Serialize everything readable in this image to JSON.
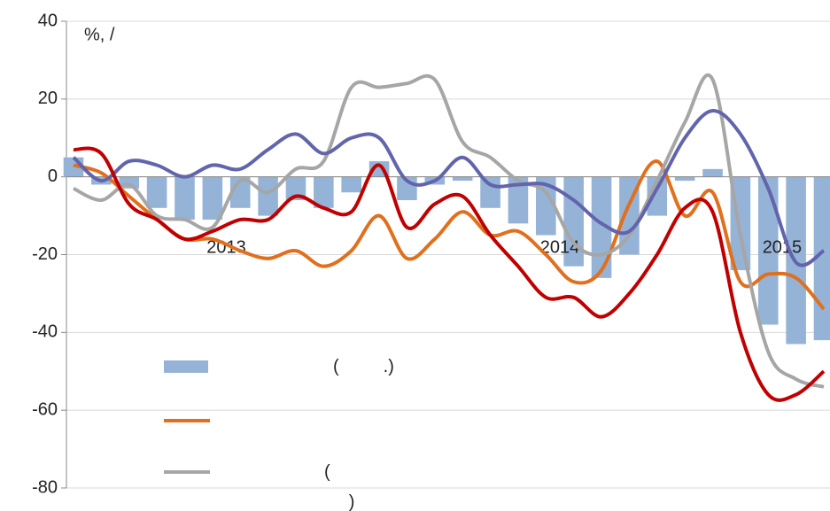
{
  "chart_data": {
    "type": "bar-line",
    "title": "%,  /",
    "categories": [
      null,
      null,
      null,
      null,
      null,
      "2013",
      null,
      null,
      null,
      null,
      null,
      null,
      null,
      null,
      null,
      null,
      null,
      "2014",
      null,
      null,
      null,
      null,
      null,
      null,
      null,
      "2015",
      null,
      null
    ],
    "ylim": [
      -80,
      40
    ],
    "yticks": [
      -80,
      -60,
      -40,
      -20,
      0,
      20,
      40
    ],
    "grid": true,
    "series": [
      {
        "name": "(         .)",
        "type": "bar",
        "color": "#95b3d7",
        "values": [
          5,
          -2,
          -3,
          -8,
          -11,
          -11,
          -8,
          -10,
          -6,
          -8,
          -4,
          4,
          -6,
          -2,
          -1,
          -8,
          -12,
          -15,
          -23,
          -26,
          -20,
          -10,
          -1,
          2,
          -24,
          -38,
          -43,
          -42
        ]
      },
      {
        "type": "line",
        "color": "#e0701e",
        "values": [
          3,
          1,
          -5,
          -11,
          -16,
          -16,
          -19,
          -21,
          -19,
          -23,
          -19,
          -10,
          -21,
          -16,
          -9,
          -15,
          -14,
          -20,
          -27,
          -24,
          -7,
          4,
          -10,
          -4,
          -27,
          -25,
          -26,
          -34
        ]
      },
      {
        "name": "(\n     )",
        "type": "line",
        "color": "#a6a6a6",
        "values": [
          -3,
          -6,
          -2,
          -10,
          -11,
          -13,
          -1,
          -4,
          2,
          4,
          23,
          23,
          24,
          25,
          9,
          5,
          -1,
          -4,
          -17,
          -20,
          -15,
          -1,
          14,
          25,
          -15,
          -45,
          -52,
          -54
        ]
      },
      {
        "type": "line",
        "color": "#6264ac",
        "values": [
          5,
          -1,
          4,
          3,
          0,
          3,
          2,
          7,
          11,
          6,
          10,
          10,
          -1,
          -1,
          5,
          -2,
          -2,
          -2,
          -6,
          -12,
          -14,
          -3,
          10,
          17,
          11,
          -3,
          -22,
          -19
        ]
      },
      {
        "type": "line",
        "color": "#c00000",
        "values": [
          7,
          6,
          -7,
          -11,
          -16,
          -14,
          -11,
          -11,
          -5,
          -8,
          -9,
          3,
          -13,
          -7,
          -5,
          -15,
          -23,
          -31,
          -31,
          -36,
          -30,
          -20,
          -8,
          -9,
          -40,
          -56,
          -56,
          -50
        ]
      }
    ]
  }
}
